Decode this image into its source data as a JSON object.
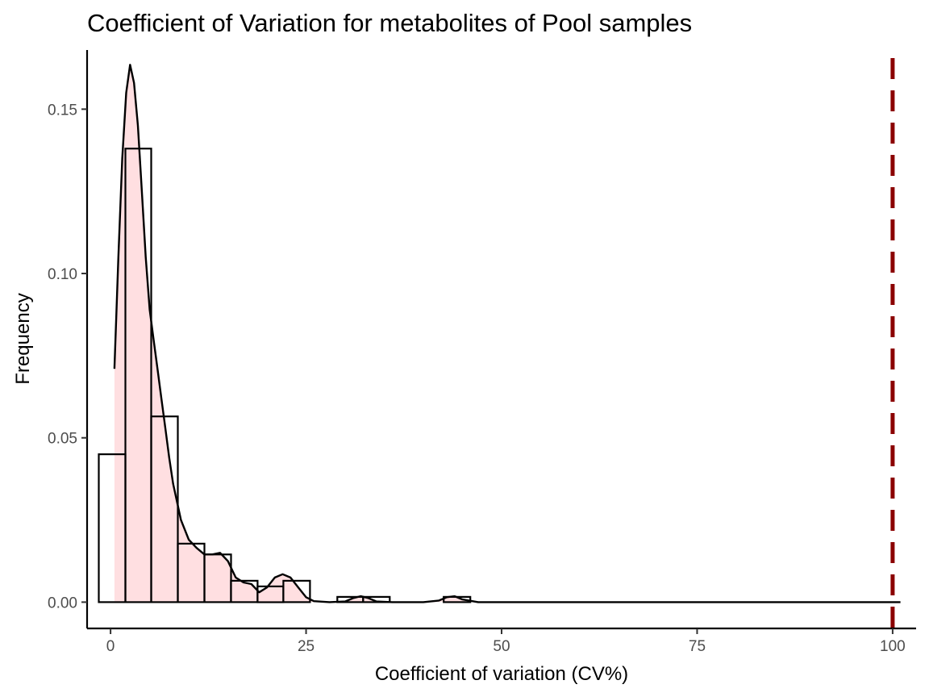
{
  "chart_data": {
    "type": "histogram",
    "title": "Coefficient of Variation for metabolites of Pool samples",
    "xlabel": "Coefficient of variation (CV%)",
    "ylabel": "Frequency",
    "xlim": [
      -3,
      103
    ],
    "ylim": [
      -0.008,
      0.168
    ],
    "x_ticks": [
      0,
      25,
      50,
      75,
      100
    ],
    "x_tick_labels": [
      "0",
      "25",
      "50",
      "75",
      "100"
    ],
    "y_ticks": [
      0,
      0.05,
      0.1,
      0.15
    ],
    "y_tick_labels": [
      "0.00",
      "0.05",
      "0.10",
      "0.15"
    ],
    "grid": false,
    "bins": [
      {
        "x0": -1.5,
        "x1": 1.9,
        "value": 0.045
      },
      {
        "x0": 1.9,
        "x1": 5.2,
        "value": 0.138
      },
      {
        "x0": 5.2,
        "x1": 8.6,
        "value": 0.0565
      },
      {
        "x0": 8.6,
        "x1": 12.0,
        "value": 0.0178
      },
      {
        "x0": 12.0,
        "x1": 15.4,
        "value": 0.0145
      },
      {
        "x0": 15.4,
        "x1": 18.8,
        "value": 0.0065
      },
      {
        "x0": 18.8,
        "x1": 22.1,
        "value": 0.0048
      },
      {
        "x0": 22.1,
        "x1": 25.5,
        "value": 0.0065
      },
      {
        "x0": 29.0,
        "x1": 32.3,
        "value": 0.0016
      },
      {
        "x0": 32.3,
        "x1": 35.7,
        "value": 0.0016
      },
      {
        "x0": 42.6,
        "x1": 46.0,
        "value": 0.0016
      }
    ],
    "density": {
      "x": [
        0.5,
        1.0,
        1.5,
        2.0,
        2.5,
        3.0,
        3.5,
        4.0,
        4.5,
        5.0,
        5.5,
        6.0,
        6.5,
        7.0,
        7.5,
        8.0,
        9.0,
        10.0,
        11.0,
        12.0,
        13.0,
        14.0,
        15.0,
        16.0,
        17.0,
        18.0,
        19.0,
        20.0,
        21.0,
        22.0,
        23.0,
        24.0,
        25.0,
        26.0,
        28.0,
        30.0,
        31.0,
        32.0,
        33.0,
        34.0,
        36.0,
        40.0,
        42.0,
        43.0,
        44.0,
        45.0,
        47.0,
        50.0,
        60.0,
        70.0,
        80.0,
        90.0,
        101.0
      ],
      "y": [
        0.071,
        0.105,
        0.135,
        0.155,
        0.1635,
        0.158,
        0.145,
        0.125,
        0.105,
        0.089,
        0.08,
        0.071,
        0.062,
        0.053,
        0.044,
        0.036,
        0.025,
        0.019,
        0.0165,
        0.0145,
        0.0145,
        0.015,
        0.0125,
        0.0075,
        0.006,
        0.0055,
        0.003,
        0.0045,
        0.0075,
        0.0085,
        0.0075,
        0.0045,
        0.0015,
        0.0003,
        0.0,
        0.0002,
        0.0012,
        0.0018,
        0.0012,
        0.0002,
        0.0,
        0.0,
        0.0005,
        0.0015,
        0.0018,
        0.0008,
        0.0,
        0.0,
        0.0,
        0.0,
        0.0,
        0.0,
        0.0
      ]
    },
    "reference_line": {
      "x": 100,
      "color": "#8b0000",
      "style": "dashed"
    },
    "colors": {
      "bar_fill": "none",
      "bar_stroke": "#000000",
      "density_fill": "#ffdfe1",
      "density_stroke": "#000000"
    }
  }
}
